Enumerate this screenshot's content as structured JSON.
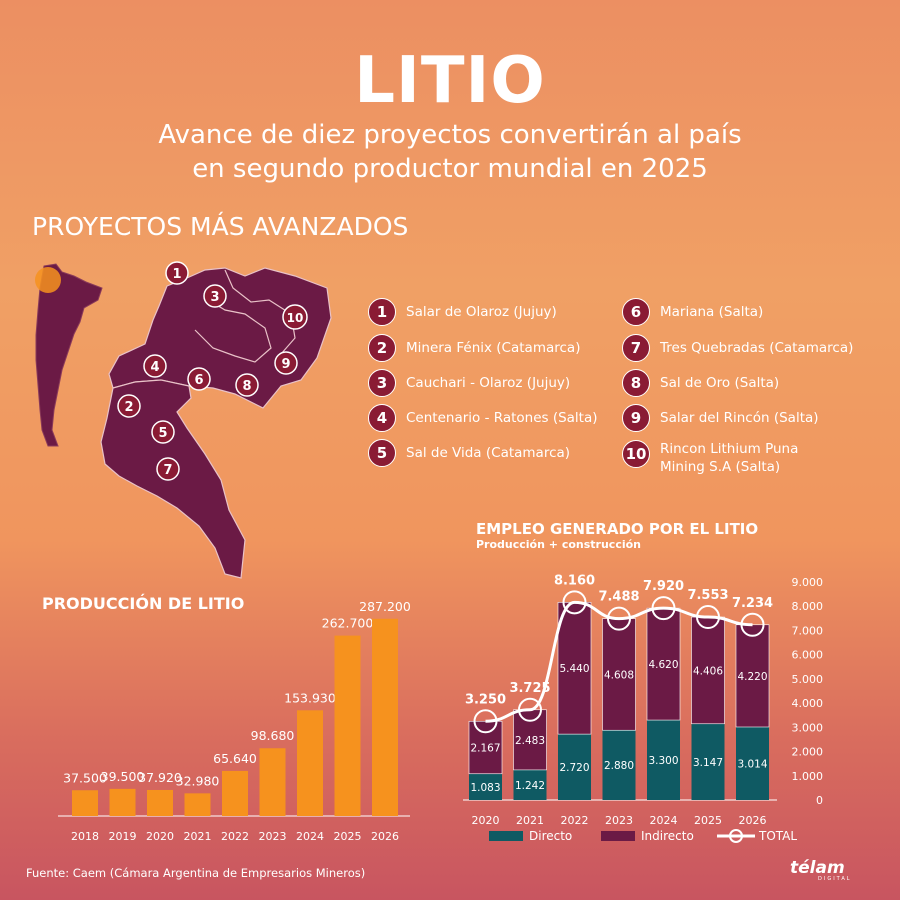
{
  "header": {
    "title": "LITIO",
    "subtitle_line1": "Avance de diez proyectos convertirán al país",
    "subtitle_line2": "en segundo productor mundial en 2025"
  },
  "projects": {
    "heading": "PROYECTOS MÁS AVANZADOS",
    "items": [
      {
        "num": "1",
        "name": "Salar de Olaroz (Jujuy)"
      },
      {
        "num": "2",
        "name": "Minera Fénix (Catamarca)"
      },
      {
        "num": "3",
        "name": "Cauchari - Olaroz (Jujuy)"
      },
      {
        "num": "4",
        "name": "Centenario - Ratones (Salta)"
      },
      {
        "num": "5",
        "name": "Sal de Vida (Catamarca)"
      },
      {
        "num": "6",
        "name": "Mariana (Salta)"
      },
      {
        "num": "7",
        "name": "Tres Quebradas (Catamarca)"
      },
      {
        "num": "8",
        "name": "Sal de Oro (Salta)"
      },
      {
        "num": "9",
        "name": "Salar del Rincón (Salta)"
      },
      {
        "num": "10",
        "name": "Rincon Lithium Puna Mining S.A (Salta)"
      }
    ]
  },
  "colors": {
    "map": "#6b1a45",
    "badge": "#8a1b34",
    "bar_production": "#f6921e",
    "direct": "#0f5a63",
    "indirect": "#6b1a45",
    "total_line": "#ffffff"
  },
  "chart_data": [
    {
      "type": "bar",
      "title": "PRODUCCIÓN DE LITIO",
      "categories": [
        "2018",
        "2019",
        "2020",
        "2021",
        "2022",
        "2023",
        "2024",
        "2025",
        "2026"
      ],
      "values": [
        37500,
        39500,
        37920,
        32980,
        65640,
        98680,
        153930,
        262700,
        287200
      ],
      "value_labels": [
        "37.500",
        "39.500",
        "37.920",
        "32.980",
        "65.640",
        "98.680",
        "153.930",
        "262.700",
        "287.200"
      ],
      "ylim": [
        0,
        300000
      ]
    },
    {
      "type": "bar",
      "stacked": true,
      "title": "EMPLEO GENERADO POR EL LITIO",
      "subtitle": "Producción + construcción",
      "categories": [
        "2020",
        "2021",
        "2022",
        "2023",
        "2024",
        "2025",
        "2026"
      ],
      "series": [
        {
          "name": "Directo",
          "values": [
            1083,
            1242,
            2720,
            2880,
            3300,
            3147,
            3014
          ],
          "labels": [
            "1.083",
            "1.242",
            "2.720",
            "2.880",
            "3.300",
            "3.147",
            "3.014"
          ]
        },
        {
          "name": "Indirecto",
          "values": [
            2167,
            2483,
            5440,
            4608,
            4620,
            4406,
            4220
          ],
          "labels": [
            "2.167",
            "2.483",
            "5.440",
            "4.608",
            "4.620",
            "4.406",
            "4.220"
          ]
        },
        {
          "name": "TOTAL",
          "values": [
            3250,
            3725,
            8160,
            7488,
            7920,
            7553,
            7234
          ],
          "labels": [
            "3.250",
            "3.725",
            "8.160",
            "7.488",
            "7.920",
            "7.553",
            "7.234"
          ]
        }
      ],
      "y_ticks": [
        0,
        1000,
        2000,
        3000,
        4000,
        5000,
        6000,
        7000,
        8000,
        9000
      ],
      "y_tick_labels": [
        "0",
        "1.000",
        "2.000",
        "3.000",
        "4.000",
        "5.000",
        "6.000",
        "7.000",
        "8.000",
        "9.000"
      ],
      "ylim": [
        0,
        9000
      ]
    }
  ],
  "footer": {
    "source": "Fuente: Caem (Cámara Argentina de Empresarios Mineros)",
    "brand": "télam",
    "brand_sub": "DIGITAL"
  }
}
